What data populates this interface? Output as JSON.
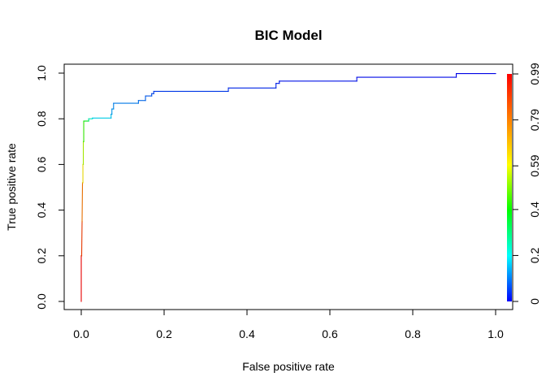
{
  "chart_data": {
    "type": "line",
    "title": "BIC Model",
    "xlabel": "False positive rate",
    "ylabel": "True positive rate",
    "xlim": [
      0,
      1
    ],
    "ylim": [
      0,
      1
    ],
    "x_ticks": [
      "0.0",
      "0.2",
      "0.4",
      "0.6",
      "0.8",
      "1.0"
    ],
    "y_ticks": [
      "0.0",
      "0.2",
      "0.4",
      "0.6",
      "0.8",
      "1.0"
    ],
    "grid": false,
    "series": [
      {
        "x": [
          0.0,
          0.0,
          0.001,
          0.002,
          0.002,
          0.003,
          0.004,
          0.004,
          0.005,
          0.005,
          0.006,
          0.006,
          0.018,
          0.018,
          0.027,
          0.027,
          0.072,
          0.072,
          0.074,
          0.074,
          0.078,
          0.078,
          0.138,
          0.138,
          0.155,
          0.155,
          0.17,
          0.17,
          0.175,
          0.175,
          0.355,
          0.355,
          0.47,
          0.47,
          0.478,
          0.478,
          0.665,
          0.665,
          0.905,
          0.905,
          1.0
        ],
        "y": [
          0.0,
          0.2,
          0.2,
          0.35,
          0.35,
          0.52,
          0.52,
          0.6,
          0.6,
          0.7,
          0.7,
          0.79,
          0.79,
          0.8,
          0.8,
          0.803,
          0.803,
          0.82,
          0.82,
          0.843,
          0.843,
          0.868,
          0.868,
          0.88,
          0.88,
          0.9,
          0.9,
          0.91,
          0.91,
          0.92,
          0.92,
          0.935,
          0.935,
          0.955,
          0.955,
          0.965,
          0.965,
          0.982,
          0.982,
          0.998,
          0.998
        ],
        "cutoff": [
          0.99,
          0.95,
          0.93,
          0.9,
          0.87,
          0.8,
          0.76,
          0.72,
          0.67,
          0.6,
          0.55,
          0.48,
          0.35,
          0.3,
          0.25,
          0.22,
          0.2,
          0.18,
          0.16,
          0.15,
          0.14,
          0.13,
          0.12,
          0.11,
          0.1,
          0.09,
          0.08,
          0.07,
          0.065,
          0.06,
          0.05,
          0.04,
          0.035,
          0.03,
          0.025,
          0.02,
          0.015,
          0.01,
          0.005,
          0.002,
          0.0
        ]
      }
    ],
    "colorkey": {
      "labels": [
        "0",
        "0.2",
        "0.4",
        "0.59",
        "0.79",
        "0.99"
      ],
      "values": [
        0,
        0.2,
        0.4,
        0.59,
        0.79,
        0.99
      ],
      "range": [
        0,
        0.99
      ],
      "colormap": "rainbow"
    }
  }
}
